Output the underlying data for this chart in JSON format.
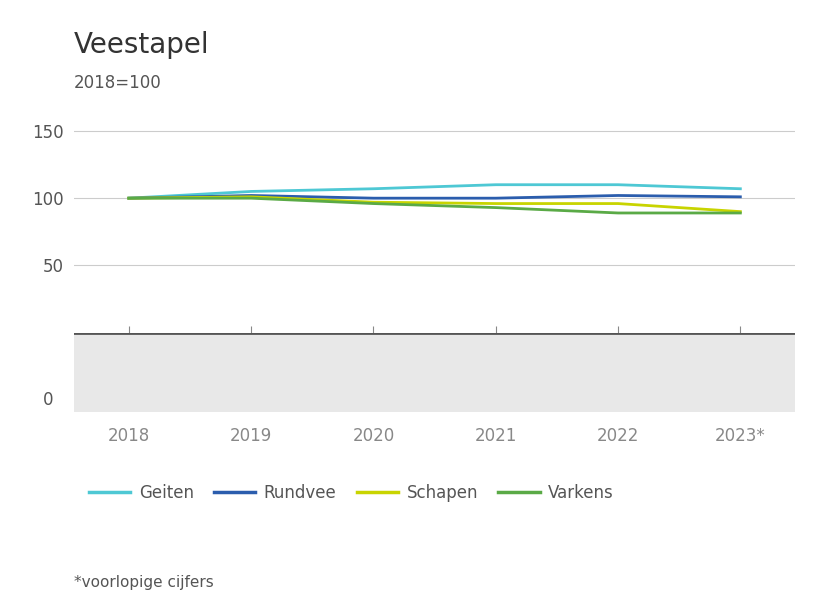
{
  "title": "Veestapel",
  "subtitle": "2018=100",
  "years": [
    2018,
    2019,
    2020,
    2021,
    2022,
    2023
  ],
  "year_labels": [
    "2018",
    "2019",
    "2020",
    "2021",
    "2022",
    "2023*"
  ],
  "series": {
    "Geiten": {
      "values": [
        100,
        105,
        107,
        110,
        110,
        107
      ],
      "color": "#4EC8D4"
    },
    "Rundvee": {
      "values": [
        100,
        102,
        100,
        100,
        102,
        101
      ],
      "color": "#2B5DAD"
    },
    "Schapen": {
      "values": [
        100,
        101,
        97,
        96,
        96,
        90
      ],
      "color": "#C8D400"
    },
    "Varkens": {
      "values": [
        100,
        100,
        96,
        93,
        89,
        89
      ],
      "color": "#5AAA46"
    }
  },
  "yticks_main": [
    50,
    100,
    150
  ],
  "ylim_main": [
    0,
    165
  ],
  "note": "*voorlopige cijfers",
  "bg_color_main": "#ffffff",
  "bg_color_bottom": "#e8e8e8",
  "grid_color": "#cccccc",
  "axis_line_color": "#555555",
  "line_width": 2.0,
  "title_fontsize": 20,
  "subtitle_fontsize": 12,
  "tick_fontsize": 12,
  "legend_fontsize": 12,
  "note_fontsize": 11
}
